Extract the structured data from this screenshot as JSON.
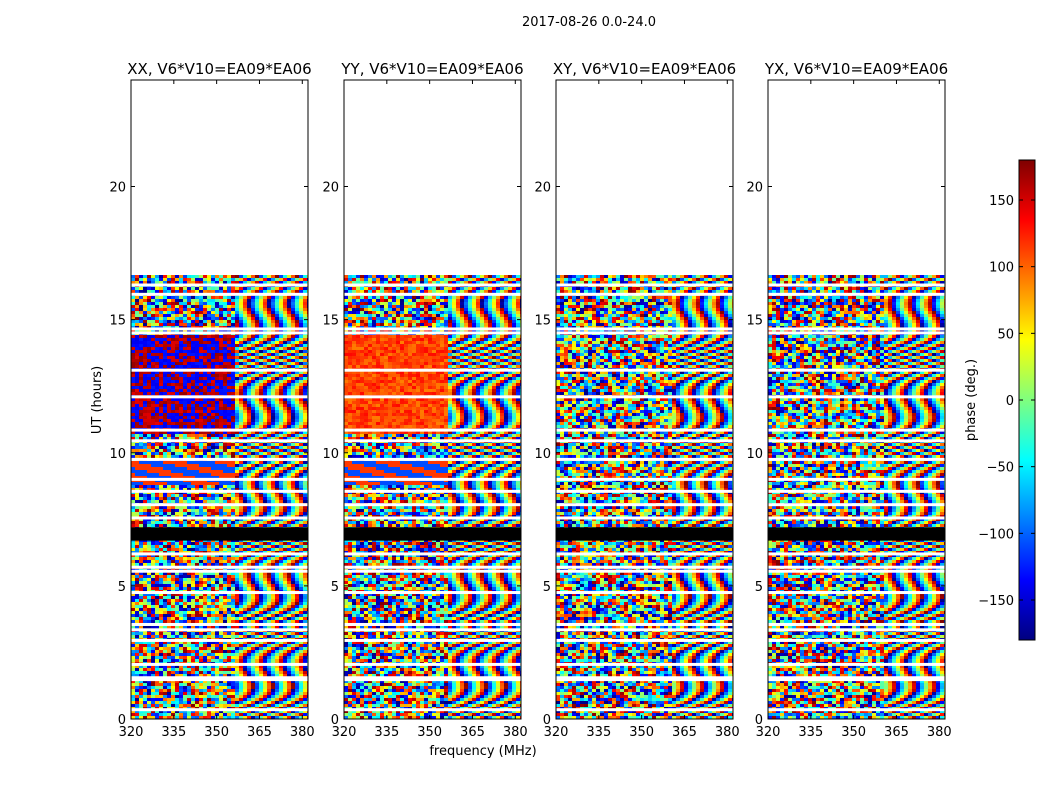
{
  "chart_data": {
    "type": "heatmap",
    "suptitle": "2017-08-26 0.0-24.0",
    "xlabel": "frequency (MHz)",
    "ylabel": "UT (hours)",
    "xlim": [
      320,
      382
    ],
    "ylim": [
      0,
      24
    ],
    "xticks": [
      320,
      335,
      350,
      365,
      380
    ],
    "yticks": [
      0,
      5,
      10,
      15,
      20
    ],
    "data_time_range": [
      0.0,
      16.7
    ],
    "black_band": [
      6.7,
      7.2
    ],
    "panels": [
      {
        "title": "XX, V6*V10=EA09*EA06",
        "pol": "XX",
        "coherent_phase": "blue-red",
        "breakpoint_mhz": 356
      },
      {
        "title": "YY, V6*V10=EA09*EA06",
        "pol": "YY",
        "coherent_phase": "orange-red",
        "breakpoint_mhz": 356
      },
      {
        "title": "XY, V6*V10=EA09*EA06",
        "pol": "XY",
        "coherent_phase": "noise",
        "breakpoint_mhz": 360
      },
      {
        "title": "YX, V6*V10=EA09*EA06",
        "pol": "YX",
        "coherent_phase": "noise",
        "breakpoint_mhz": 360
      }
    ],
    "colorbar": {
      "label": "phase (deg.)",
      "range": [
        -180,
        180
      ],
      "ticks": [
        150,
        100,
        50,
        0,
        -50,
        -100,
        -150
      ],
      "tick_labels": [
        "150",
        "100",
        "50",
        "0",
        "−50",
        "−100",
        "−150"
      ],
      "colormap": "jet",
      "colormap_stops": [
        "#00007f",
        "#0000ff",
        "#007fff",
        "#00ffff",
        "#7fff7f",
        "#ffff00",
        "#ff7f00",
        "#ff0000",
        "#7f0000"
      ]
    }
  }
}
